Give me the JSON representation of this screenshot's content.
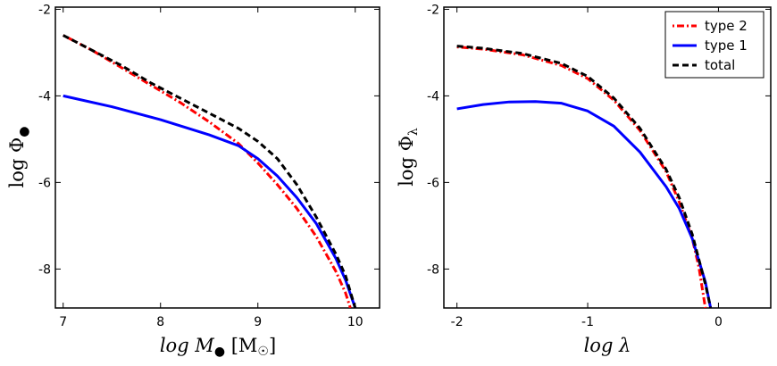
{
  "chart_data": [
    {
      "type": "line",
      "panel": "left",
      "xlabel": "log M● [M☉]",
      "ylabel": "log Φ●",
      "xlim": [
        6.92,
        10.25
      ],
      "ylim": [
        -8.9,
        -1.95
      ],
      "xticks": [
        7,
        8,
        9,
        10
      ],
      "xtick_labels": [
        "7",
        "8",
        "9",
        "10"
      ],
      "yticks": [
        -2,
        -4,
        -6,
        -8
      ],
      "ytick_labels": [
        "-2",
        "-4",
        "-6",
        "-8"
      ],
      "legend": null,
      "series": [
        {
          "name": "type 2",
          "style": "dashdot",
          "color": "#ff0000",
          "x": [
            7.0,
            7.3,
            7.6,
            7.9,
            8.2,
            8.5,
            8.8,
            9.0,
            9.2,
            9.4,
            9.6,
            9.8,
            9.9,
            9.95
          ],
          "y": [
            -2.6,
            -2.95,
            -3.35,
            -3.75,
            -4.15,
            -4.6,
            -5.1,
            -5.55,
            -6.05,
            -6.6,
            -7.25,
            -8.05,
            -8.55,
            -8.9
          ]
        },
        {
          "name": "type 1",
          "style": "solid",
          "color": "#0000ff",
          "x": [
            7.0,
            7.5,
            8.0,
            8.5,
            8.8,
            9.0,
            9.2,
            9.4,
            9.6,
            9.8,
            9.9,
            10.0
          ],
          "y": [
            -4.0,
            -4.25,
            -4.55,
            -4.9,
            -5.15,
            -5.45,
            -5.85,
            -6.35,
            -6.95,
            -7.75,
            -8.25,
            -8.9
          ]
        },
        {
          "name": "total",
          "style": "dashed",
          "color": "#000000",
          "x": [
            7.0,
            7.3,
            7.6,
            7.9,
            8.2,
            8.5,
            8.8,
            9.0,
            9.2,
            9.4,
            9.6,
            9.8,
            9.9,
            10.0
          ],
          "y": [
            -2.6,
            -2.95,
            -3.3,
            -3.7,
            -4.05,
            -4.4,
            -4.75,
            -5.05,
            -5.45,
            -6.05,
            -6.8,
            -7.65,
            -8.15,
            -8.9
          ]
        }
      ]
    },
    {
      "type": "line",
      "panel": "right",
      "xlabel": "log λ",
      "ylabel": "log Φλ",
      "xlim": [
        -2.1,
        0.4
      ],
      "ylim": [
        -8.9,
        -1.95
      ],
      "xticks": [
        -2,
        -1,
        0
      ],
      "xtick_labels": [
        "-2",
        "-1",
        "0"
      ],
      "yticks": [
        -2,
        -4,
        -6,
        -8
      ],
      "ytick_labels": [
        "-2",
        "-4",
        "-6",
        "-8"
      ],
      "legend": "top-right",
      "series": [
        {
          "name": "type 2",
          "style": "dashdot",
          "color": "#ff0000",
          "x": [
            -2.0,
            -1.8,
            -1.5,
            -1.2,
            -1.0,
            -0.8,
            -0.6,
            -0.4,
            -0.3,
            -0.2,
            -0.15,
            -0.1
          ],
          "y": [
            -2.87,
            -2.92,
            -3.05,
            -3.3,
            -3.6,
            -4.1,
            -4.8,
            -5.75,
            -6.45,
            -7.3,
            -7.95,
            -8.9
          ]
        },
        {
          "name": "type 1",
          "style": "solid",
          "color": "#0000ff",
          "x": [
            -2.0,
            -1.8,
            -1.6,
            -1.4,
            -1.2,
            -1.0,
            -0.8,
            -0.6,
            -0.4,
            -0.3,
            -0.2,
            -0.1,
            -0.06
          ],
          "y": [
            -4.3,
            -4.2,
            -4.14,
            -4.13,
            -4.17,
            -4.35,
            -4.7,
            -5.3,
            -6.1,
            -6.6,
            -7.3,
            -8.3,
            -8.9
          ]
        },
        {
          "name": "total",
          "style": "dashed",
          "color": "#000000",
          "x": [
            -2.0,
            -1.8,
            -1.5,
            -1.2,
            -1.0,
            -0.8,
            -0.6,
            -0.4,
            -0.3,
            -0.2,
            -0.1,
            -0.06
          ],
          "y": [
            -2.85,
            -2.9,
            -3.02,
            -3.25,
            -3.55,
            -4.05,
            -4.75,
            -5.7,
            -6.35,
            -7.2,
            -8.35,
            -8.9
          ]
        }
      ]
    }
  ]
}
